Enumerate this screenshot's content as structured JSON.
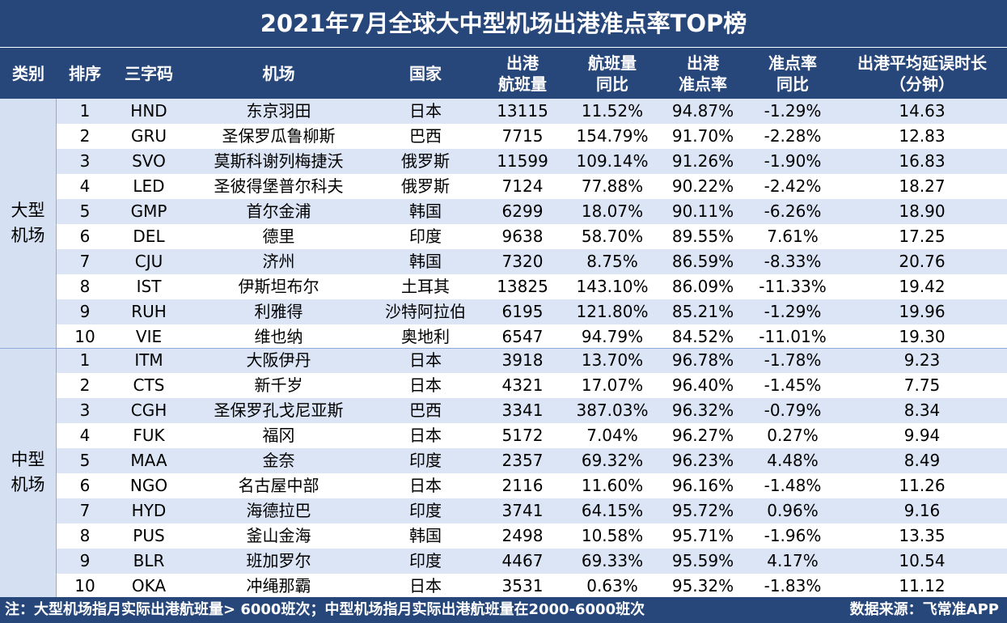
{
  "title": "2021年7月全球大中型机场出港准点率TOP榜",
  "chart_data": {
    "type": "table",
    "title": "2021年7月全球大中型机场出港准点率TOP榜",
    "columns": [
      "类别",
      "排序",
      "三字码",
      "机场",
      "国家",
      "出港\n航班量",
      "航班量\n同比",
      "出港\n准点率",
      "准点率\n同比",
      "出港平均延误时长\n（分钟）"
    ],
    "groups": [
      {
        "category": "大型\n机场",
        "rows": [
          {
            "rank": "1",
            "code": "HND",
            "airport": "东京羽田",
            "country": "日本",
            "flights": "13115",
            "flights_yoy": "11.52%",
            "ontime": "94.87%",
            "ontime_yoy": "-1.29%",
            "delay": "14.63"
          },
          {
            "rank": "2",
            "code": "GRU",
            "airport": "圣保罗瓜鲁柳斯",
            "country": "巴西",
            "flights": "7715",
            "flights_yoy": "154.79%",
            "ontime": "91.70%",
            "ontime_yoy": "-2.28%",
            "delay": "12.83"
          },
          {
            "rank": "3",
            "code": "SVO",
            "airport": "莫斯科谢列梅捷沃",
            "country": "俄罗斯",
            "flights": "11599",
            "flights_yoy": "109.14%",
            "ontime": "91.26%",
            "ontime_yoy": "-1.90%",
            "delay": "16.83"
          },
          {
            "rank": "4",
            "code": "LED",
            "airport": "圣彼得堡普尔科夫",
            "country": "俄罗斯",
            "flights": "7124",
            "flights_yoy": "77.88%",
            "ontime": "90.22%",
            "ontime_yoy": "-2.42%",
            "delay": "18.27"
          },
          {
            "rank": "5",
            "code": "GMP",
            "airport": "首尔金浦",
            "country": "韩国",
            "flights": "6299",
            "flights_yoy": "18.07%",
            "ontime": "90.11%",
            "ontime_yoy": "-6.26%",
            "delay": "18.90"
          },
          {
            "rank": "6",
            "code": "DEL",
            "airport": "德里",
            "country": "印度",
            "flights": "9638",
            "flights_yoy": "58.70%",
            "ontime": "89.55%",
            "ontime_yoy": "7.61%",
            "delay": "17.25"
          },
          {
            "rank": "7",
            "code": "CJU",
            "airport": "济州",
            "country": "韩国",
            "flights": "7320",
            "flights_yoy": "8.75%",
            "ontime": "86.59%",
            "ontime_yoy": "-8.33%",
            "delay": "20.76"
          },
          {
            "rank": "8",
            "code": "IST",
            "airport": "伊斯坦布尔",
            "country": "土耳其",
            "flights": "13825",
            "flights_yoy": "143.10%",
            "ontime": "86.09%",
            "ontime_yoy": "-11.33%",
            "delay": "19.42"
          },
          {
            "rank": "9",
            "code": "RUH",
            "airport": "利雅得",
            "country": "沙特阿拉伯",
            "flights": "6195",
            "flights_yoy": "121.80%",
            "ontime": "85.21%",
            "ontime_yoy": "-1.29%",
            "delay": "19.96"
          },
          {
            "rank": "10",
            "code": "VIE",
            "airport": "维也纳",
            "country": "奥地利",
            "flights": "6547",
            "flights_yoy": "94.79%",
            "ontime": "84.52%",
            "ontime_yoy": "-11.01%",
            "delay": "19.30"
          }
        ]
      },
      {
        "category": "中型\n机场",
        "rows": [
          {
            "rank": "1",
            "code": "ITM",
            "airport": "大阪伊丹",
            "country": "日本",
            "flights": "3918",
            "flights_yoy": "13.70%",
            "ontime": "96.78%",
            "ontime_yoy": "-1.78%",
            "delay": "9.23"
          },
          {
            "rank": "2",
            "code": "CTS",
            "airport": "新千岁",
            "country": "日本",
            "flights": "4321",
            "flights_yoy": "17.07%",
            "ontime": "96.40%",
            "ontime_yoy": "-1.45%",
            "delay": "7.75"
          },
          {
            "rank": "3",
            "code": "CGH",
            "airport": "圣保罗孔戈尼亚斯",
            "country": "巴西",
            "flights": "3341",
            "flights_yoy": "387.03%",
            "ontime": "96.32%",
            "ontime_yoy": "-0.79%",
            "delay": "8.34"
          },
          {
            "rank": "4",
            "code": "FUK",
            "airport": "福冈",
            "country": "日本",
            "flights": "5172",
            "flights_yoy": "7.04%",
            "ontime": "96.27%",
            "ontime_yoy": "0.27%",
            "delay": "9.94"
          },
          {
            "rank": "5",
            "code": "MAA",
            "airport": "金奈",
            "country": "印度",
            "flights": "2357",
            "flights_yoy": "69.32%",
            "ontime": "96.23%",
            "ontime_yoy": "4.48%",
            "delay": "8.49"
          },
          {
            "rank": "6",
            "code": "NGO",
            "airport": "名古屋中部",
            "country": "日本",
            "flights": "2116",
            "flights_yoy": "11.60%",
            "ontime": "96.16%",
            "ontime_yoy": "-1.48%",
            "delay": "11.26"
          },
          {
            "rank": "7",
            "code": "HYD",
            "airport": "海德拉巴",
            "country": "印度",
            "flights": "3741",
            "flights_yoy": "64.15%",
            "ontime": "95.72%",
            "ontime_yoy": "0.96%",
            "delay": "9.16"
          },
          {
            "rank": "8",
            "code": "PUS",
            "airport": "釜山金海",
            "country": "韩国",
            "flights": "2498",
            "flights_yoy": "10.58%",
            "ontime": "95.71%",
            "ontime_yoy": "-1.96%",
            "delay": "13.35"
          },
          {
            "rank": "9",
            "code": "BLR",
            "airport": "班加罗尔",
            "country": "印度",
            "flights": "4467",
            "flights_yoy": "69.33%",
            "ontime": "95.59%",
            "ontime_yoy": "4.17%",
            "delay": "10.54"
          },
          {
            "rank": "10",
            "code": "OKA",
            "airport": "冲绳那霸",
            "country": "日本",
            "flights": "3531",
            "flights_yoy": "0.63%",
            "ontime": "95.32%",
            "ontime_yoy": "-1.83%",
            "delay": "11.12"
          }
        ]
      }
    ]
  },
  "footer": {
    "note": "注：大型机场指月实际出港航班量> 6000班次；中型机场指月实际出港航班量在2000-6000班次",
    "source": "数据来源：飞常准APP"
  },
  "colors": {
    "header_bg": "#27477a",
    "stripe": "#dbe5f5",
    "category_bg": "#d5e0f2",
    "divider": "#8faadc"
  }
}
